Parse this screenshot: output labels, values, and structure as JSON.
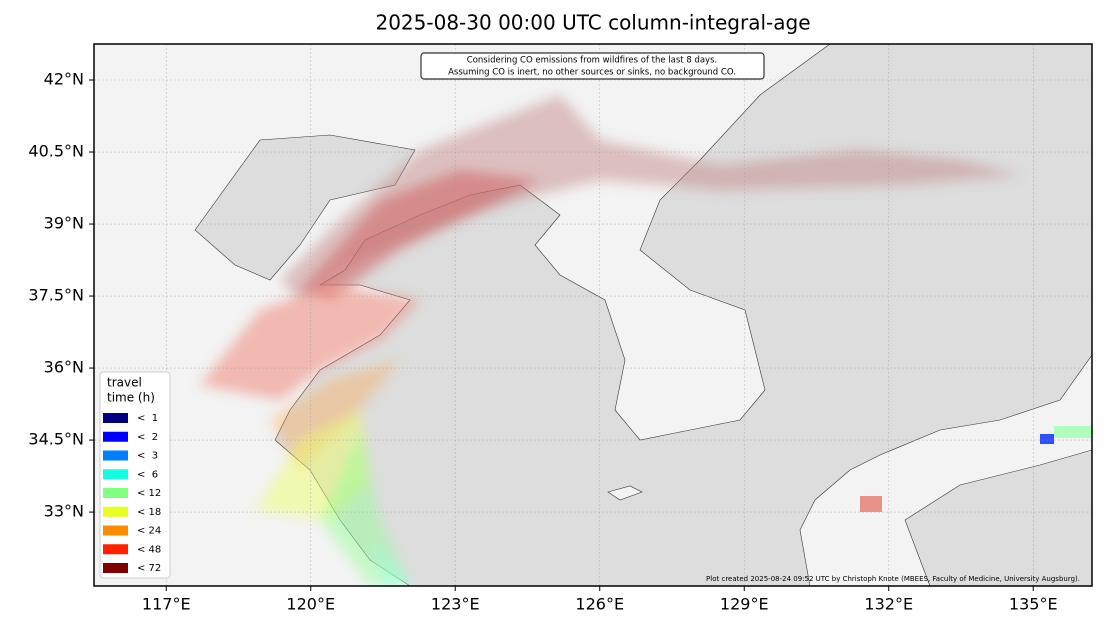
{
  "map": {
    "title": "2025-08-30 00:00 UTC column-integral-age",
    "note": [
      "Considering CO emissions from wildfires of the last 8 days.",
      "Assuming CO is inert, no other sources or sinks, no background CO."
    ],
    "credit": "Plot created 2025-08-24 09:52 UTC by Christoph Knote (MBEES, Faculty of Medicine, University Augsburg).",
    "xlim": [
      115.5,
      136.22
    ],
    "ylim": [
      31.46,
      42.75
    ],
    "xticks": [
      {
        "value": 117,
        "label": "117°E"
      },
      {
        "value": 120,
        "label": "120°E"
      },
      {
        "value": 123,
        "label": "123°E"
      },
      {
        "value": 126,
        "label": "126°E"
      },
      {
        "value": 129,
        "label": "129°E"
      },
      {
        "value": 132,
        "label": "132°E"
      },
      {
        "value": 135,
        "label": "135°E"
      }
    ],
    "yticks": [
      {
        "value": 33,
        "label": "33°N"
      },
      {
        "value": 34.5,
        "label": "34.5°N"
      },
      {
        "value": 36,
        "label": "36°N"
      },
      {
        "value": 37.5,
        "label": "37.5°N"
      },
      {
        "value": 39,
        "label": "39°N"
      },
      {
        "value": 40.5,
        "label": "40.5°N"
      },
      {
        "value": 42,
        "label": "42°N"
      }
    ],
    "legend": {
      "title": [
        "travel",
        "time (h)"
      ],
      "entries": [
        {
          "label": "<  1",
          "color": "#000080"
        },
        {
          "label": "<  2",
          "color": "#0000ff"
        },
        {
          "label": "<  3",
          "color": "#0080ff"
        },
        {
          "label": "<  6",
          "color": "#10ffe0"
        },
        {
          "label": "< 12",
          "color": "#80ff80"
        },
        {
          "label": "< 18",
          "color": "#e8ff20"
        },
        {
          "label": "< 24",
          "color": "#ff8c00"
        },
        {
          "label": "< 48",
          "color": "#ff2000"
        },
        {
          "label": "< 72",
          "color": "#800000"
        }
      ]
    }
  }
}
